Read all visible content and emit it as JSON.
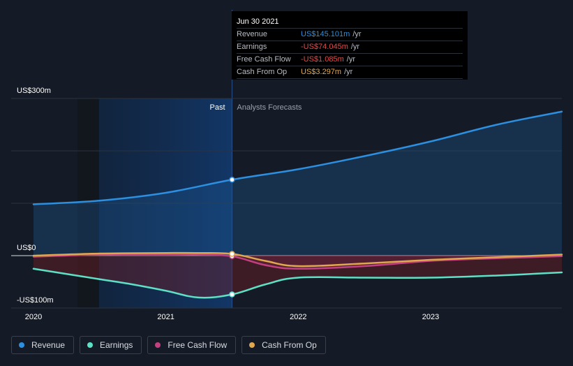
{
  "chart_data": {
    "type": "line",
    "x_ticks": [
      "2020",
      "2021",
      "2022",
      "2023"
    ],
    "y_ticks": [
      {
        "label": "US$300m",
        "value": 300
      },
      {
        "label": "US$0",
        "value": 0
      },
      {
        "label": "-US$100m",
        "value": -100
      }
    ],
    "ylim": [
      -100,
      300
    ],
    "xlim": [
      2019.92,
      2024.0
    ],
    "past_label": "Past",
    "forecast_label": "Analysts Forecasts",
    "split_x": 2021.5,
    "series": [
      {
        "name": "Revenue",
        "color": "#2c8fe0",
        "x": [
          2020.0,
          2020.5,
          2021.0,
          2021.5,
          2022.0,
          2022.5,
          2023.0,
          2023.5,
          2024.0
        ],
        "values": [
          98,
          105,
          120,
          145,
          165,
          190,
          218,
          250,
          275
        ]
      },
      {
        "name": "Earnings",
        "color": "#5ee0c6",
        "x": [
          2020.0,
          2020.25,
          2020.5,
          2020.75,
          2021.0,
          2021.25,
          2021.5,
          2021.75,
          2022.0,
          2022.5,
          2023.0,
          2023.5,
          2024.0
        ],
        "values": [
          -25,
          -35,
          -45,
          -55,
          -67,
          -80,
          -74,
          -55,
          -42,
          -42,
          -42,
          -38,
          -32
        ]
      },
      {
        "name": "Free Cash Flow",
        "color": "#c2407f",
        "x": [
          2020.0,
          2020.5,
          2021.0,
          2021.25,
          2021.5,
          2021.75,
          2022.0,
          2022.5,
          2023.0,
          2023.5,
          2024.0
        ],
        "values": [
          -2,
          2,
          3,
          2,
          -1.085,
          -18,
          -25,
          -20,
          -10,
          -5,
          -1
        ]
      },
      {
        "name": "Cash From Op",
        "color": "#e0a84e",
        "x": [
          2020.0,
          2020.5,
          2021.0,
          2021.25,
          2021.5,
          2021.75,
          2022.0,
          2022.5,
          2023.0,
          2023.5,
          2024.0
        ],
        "values": [
          0,
          4,
          5,
          5,
          3.297,
          -10,
          -20,
          -15,
          -8,
          -3,
          2
        ]
      }
    ]
  },
  "tooltip": {
    "date": "Jun 30 2021",
    "rows": [
      {
        "label": "Revenue",
        "value": "US$145.101m",
        "unit": "/yr",
        "color": "#2c8fe0"
      },
      {
        "label": "Earnings",
        "value": "-US$74.045m",
        "unit": "/yr",
        "color": "#e24a4a"
      },
      {
        "label": "Free Cash Flow",
        "value": "-US$1.085m",
        "unit": "/yr",
        "color": "#e24a4a"
      },
      {
        "label": "Cash From Op",
        "value": "US$3.297m",
        "unit": "/yr",
        "color": "#e0a84e"
      }
    ]
  },
  "legend": [
    {
      "label": "Revenue",
      "color": "#2c8fe0"
    },
    {
      "label": "Earnings",
      "color": "#5ee0c6"
    },
    {
      "label": "Free Cash Flow",
      "color": "#c2407f"
    },
    {
      "label": "Cash From Op",
      "color": "#e0a84e"
    }
  ]
}
